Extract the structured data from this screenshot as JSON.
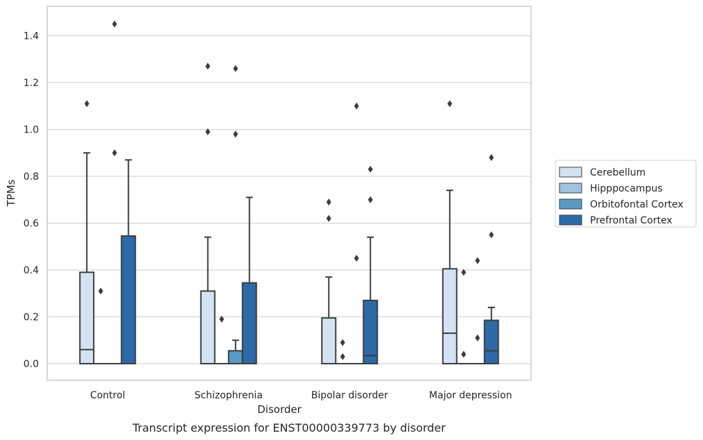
{
  "chart_data": {
    "type": "box",
    "caption": "Transcript expression for ENST00000339773 by disorder",
    "xlabel": "Disorder",
    "ylabel": "TPMs",
    "ylim": [
      -0.07,
      1.53
    ],
    "yticks": [
      "0.0",
      "0.2",
      "0.4",
      "0.6",
      "0.8",
      "1.0",
      "1.2",
      "1.4"
    ],
    "grid": true,
    "legend_position": "right",
    "categories": [
      "Control",
      "Schizophrenia",
      "Bipolar disorder",
      "Major depression"
    ],
    "series": [
      {
        "name": "Cerebellum",
        "color": "#d4e3f2",
        "boxes": [
          {
            "q1": 0.0,
            "median": 0.06,
            "q3": 0.39,
            "whisker_low": 0.0,
            "whisker_high": 0.9,
            "outliers": [
              1.11
            ]
          },
          {
            "q1": 0.0,
            "median": 0.0,
            "q3": 0.31,
            "whisker_low": 0.0,
            "whisker_high": 0.54,
            "outliers": [
              0.99,
              1.27
            ]
          },
          {
            "q1": 0.0,
            "median": 0.0,
            "q3": 0.195,
            "whisker_low": 0.0,
            "whisker_high": 0.37,
            "outliers": [
              0.62,
              0.69
            ]
          },
          {
            "q1": 0.0,
            "median": 0.13,
            "q3": 0.405,
            "whisker_low": 0.0,
            "whisker_high": 0.74,
            "outliers": [
              1.11
            ]
          }
        ]
      },
      {
        "name": "Hipppocampus",
        "color": "#9dc3de",
        "boxes": [
          {
            "q1": 0.0,
            "median": 0.0,
            "q3": 0.0,
            "whisker_low": 0.0,
            "whisker_high": 0.0,
            "outliers": [
              0.31
            ]
          },
          {
            "q1": 0.0,
            "median": 0.0,
            "q3": 0.0,
            "whisker_low": 0.0,
            "whisker_high": 0.0,
            "outliers": [
              0.19
            ]
          },
          {
            "q1": 0.0,
            "median": 0.0,
            "q3": 0.0,
            "whisker_low": 0.0,
            "whisker_high": 0.0,
            "outliers": [
              0.03,
              0.09
            ]
          },
          {
            "q1": 0.0,
            "median": 0.0,
            "q3": 0.0,
            "whisker_low": 0.0,
            "whisker_high": 0.0,
            "outliers": [
              0.04,
              0.39
            ]
          }
        ]
      },
      {
        "name": "Orbitofontal Cortex",
        "color": "#5b9ac6",
        "boxes": [
          {
            "q1": 0.0,
            "median": 0.0,
            "q3": 0.0,
            "whisker_low": 0.0,
            "whisker_high": 0.0,
            "outliers": [
              0.9,
              1.45
            ]
          },
          {
            "q1": 0.0,
            "median": 0.0,
            "q3": 0.055,
            "whisker_low": 0.0,
            "whisker_high": 0.1,
            "outliers": [
              0.98,
              1.26
            ]
          },
          {
            "q1": 0.0,
            "median": 0.0,
            "q3": 0.0,
            "whisker_low": 0.0,
            "whisker_high": 0.0,
            "outliers": [
              0.45,
              1.1
            ]
          },
          {
            "q1": 0.0,
            "median": 0.0,
            "q3": 0.0,
            "whisker_low": 0.0,
            "whisker_high": 0.0,
            "outliers": [
              0.11,
              0.44
            ]
          }
        ]
      },
      {
        "name": "Prefrontal Cortex",
        "color": "#2c6aa8",
        "boxes": [
          {
            "q1": 0.0,
            "median": 0.0,
            "q3": 0.545,
            "whisker_low": 0.0,
            "whisker_high": 0.87,
            "outliers": []
          },
          {
            "q1": 0.0,
            "median": 0.0,
            "q3": 0.345,
            "whisker_low": 0.0,
            "whisker_high": 0.71,
            "outliers": []
          },
          {
            "q1": 0.0,
            "median": 0.035,
            "q3": 0.27,
            "whisker_low": 0.0,
            "whisker_high": 0.54,
            "outliers": [
              0.7,
              0.83
            ]
          },
          {
            "q1": 0.0,
            "median": 0.055,
            "q3": 0.185,
            "whisker_low": 0.0,
            "whisker_high": 0.24,
            "outliers": [
              0.55,
              0.88
            ]
          }
        ]
      }
    ]
  }
}
